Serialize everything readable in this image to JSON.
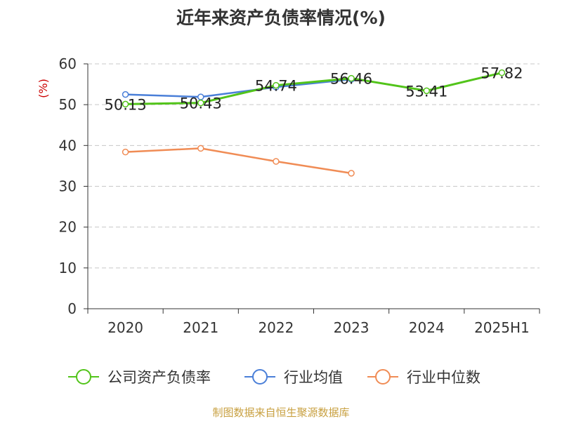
{
  "title": "近年来资产负债率情况(%)",
  "source": "制图数据来自恒生聚源数据库",
  "chart_data": {
    "type": "line",
    "title": "近年来资产负债率情况(%)",
    "ylabel": "(%)",
    "ylim": [
      0,
      60
    ],
    "yticks": [
      0,
      10,
      20,
      30,
      40,
      50,
      60
    ],
    "categories": [
      "2020",
      "2021",
      "2022",
      "2023",
      "2024",
      "2025H1"
    ],
    "grid": true,
    "legend_position": "bottom",
    "series": [
      {
        "name": "公司资产负债率",
        "color": "#52c41a",
        "values": [
          50.13,
          50.43,
          54.74,
          56.46,
          53.41,
          57.82
        ],
        "labels": [
          "50.13",
          "50.43",
          "54.74",
          "56.46",
          "53.41",
          "57.82"
        ]
      },
      {
        "name": "行业均值",
        "color": "#4a7fd8",
        "values": [
          52.5,
          51.9,
          54.3,
          56.2,
          null,
          null
        ]
      },
      {
        "name": "行业中位数",
        "color": "#f08c55",
        "values": [
          38.4,
          39.3,
          36.1,
          33.2,
          null,
          null
        ]
      }
    ]
  }
}
